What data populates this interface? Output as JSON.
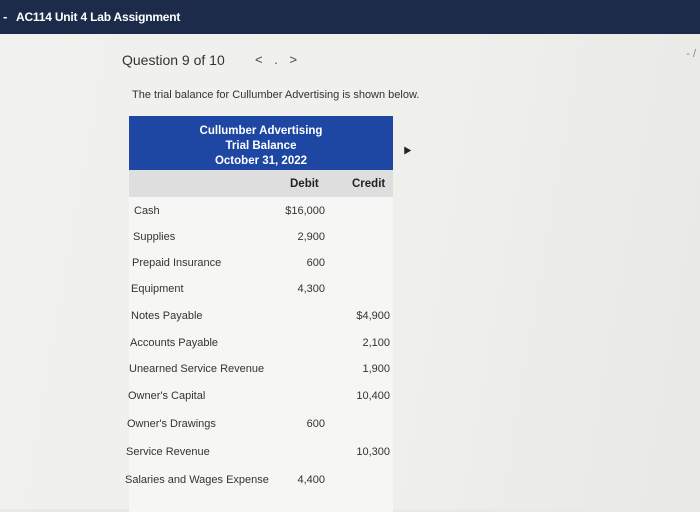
{
  "topbar": {
    "dash": "-",
    "title": "AC114 Unit 4 Lab Assignment"
  },
  "question": {
    "label": "Question 9 of 10",
    "prev": "<",
    "dot": ".",
    "next": ">"
  },
  "corner_mark": "- /",
  "intro": "The trial balance for Cullumber Advertising is shown below.",
  "table": {
    "company": "Cullumber Advertising",
    "statement": "Trial Balance",
    "date": "October 31, 2022",
    "debit_header": "Debit",
    "credit_header": "Credit",
    "rows": [
      {
        "account": "Cash",
        "debit": "$16,000",
        "credit": ""
      },
      {
        "account": "Supplies",
        "debit": "2,900",
        "credit": ""
      },
      {
        "account": "Prepaid Insurance",
        "debit": "600",
        "credit": ""
      },
      {
        "account": "Equipment",
        "debit": "4,300",
        "credit": ""
      },
      {
        "account": "Notes Payable",
        "debit": "",
        "credit": "$4,900"
      },
      {
        "account": "Accounts Payable",
        "debit": "",
        "credit": "2,100"
      },
      {
        "account": "Unearned Service Revenue",
        "debit": "",
        "credit": "1,900"
      },
      {
        "account": "Owner's Capital",
        "debit": "",
        "credit": "10,400"
      },
      {
        "account": "Owner's Drawings",
        "debit": "600",
        "credit": ""
      },
      {
        "account": "Service Revenue",
        "debit": "",
        "credit": "10,300"
      },
      {
        "account": "Salaries and Wages Expense",
        "debit": "4,400",
        "credit": ""
      }
    ]
  }
}
